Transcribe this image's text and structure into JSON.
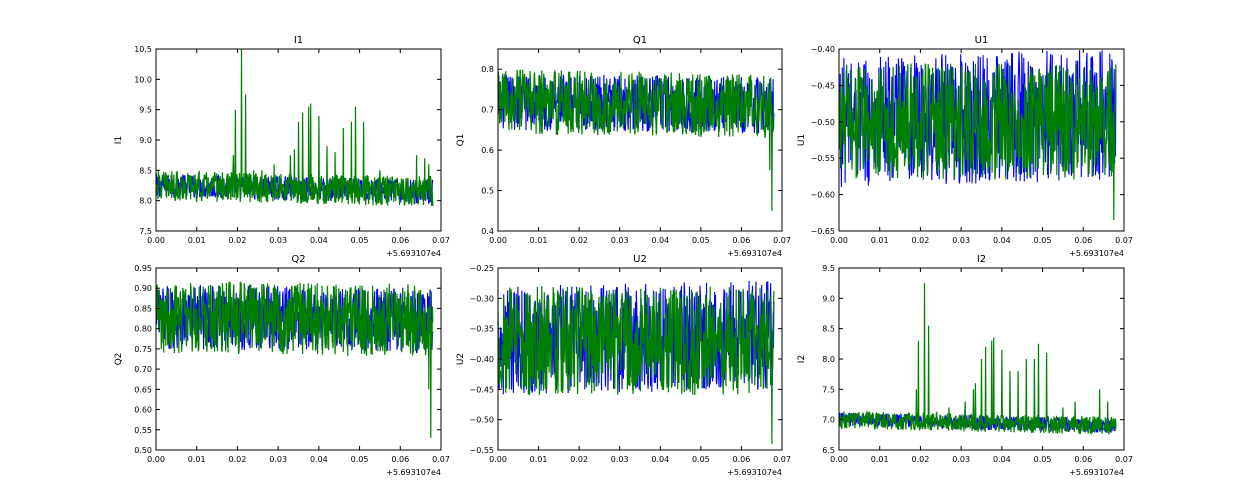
{
  "colors": {
    "series_a": "#0000ff",
    "series_b": "#008000",
    "frame": "#000000",
    "background": "#ffffff"
  },
  "chart_data": [
    {
      "type": "line",
      "title": "I1",
      "ylabel": "I1",
      "xlim": [
        0.0,
        0.07
      ],
      "ylim": [
        7.5,
        10.5
      ],
      "xticks": [
        "0.00",
        "0.01",
        "0.02",
        "0.03",
        "0.04",
        "0.05",
        "0.06",
        "0.07"
      ],
      "yticks": [
        "7.5",
        "8.0",
        "8.5",
        "9.0",
        "9.5",
        "10.0",
        "10.5"
      ],
      "x_offset_label": "+5.693107e4",
      "series": [
        {
          "color": "#0000ff",
          "x_range": [
            0.0,
            0.068
          ],
          "baseline_start": 8.25,
          "baseline_end": 8.15,
          "amplitude": 0.2,
          "spikes": []
        },
        {
          "color": "#008000",
          "x_range": [
            0.0,
            0.068
          ],
          "baseline_start": 8.25,
          "baseline_end": 8.15,
          "amplitude": 0.25,
          "spikes": [
            [
              0.019,
              8.75
            ],
            [
              0.0195,
              9.5
            ],
            [
              0.021,
              10.5
            ],
            [
              0.022,
              9.75
            ],
            [
              0.024,
              8.5
            ],
            [
              0.026,
              8.5
            ],
            [
              0.029,
              8.6
            ],
            [
              0.033,
              8.75
            ],
            [
              0.034,
              8.85
            ],
            [
              0.035,
              9.3
            ],
            [
              0.036,
              9.45
            ],
            [
              0.0375,
              9.55
            ],
            [
              0.038,
              9.6
            ],
            [
              0.04,
              9.4
            ],
            [
              0.042,
              8.9
            ],
            [
              0.044,
              8.8
            ],
            [
              0.046,
              9.2
            ],
            [
              0.048,
              9.3
            ],
            [
              0.049,
              9.55
            ],
            [
              0.051,
              9.3
            ],
            [
              0.055,
              8.5
            ],
            [
              0.058,
              8.4
            ],
            [
              0.064,
              8.75
            ],
            [
              0.066,
              8.7
            ],
            [
              0.067,
              8.6
            ]
          ]
        }
      ]
    },
    {
      "type": "line",
      "title": "Q1",
      "ylabel": "Q1",
      "xlim": [
        0.0,
        0.07
      ],
      "ylim": [
        0.4,
        0.85
      ],
      "xticks": [
        "0.00",
        "0.01",
        "0.02",
        "0.03",
        "0.04",
        "0.05",
        "0.06",
        "0.07"
      ],
      "yticks": [
        "0.4",
        "0.5",
        "0.6",
        "0.7",
        "0.8"
      ],
      "x_offset_label": "+5.693107e4",
      "series": [
        {
          "color": "#0000ff",
          "x_range": [
            0.0,
            0.068
          ],
          "baseline_start": 0.72,
          "baseline_end": 0.71,
          "amplitude": 0.07,
          "spikes": []
        },
        {
          "color": "#008000",
          "x_range": [
            0.0,
            0.068
          ],
          "baseline_start": 0.72,
          "baseline_end": 0.71,
          "amplitude": 0.08,
          "spikes": [
            [
              0.0675,
              0.45
            ],
            [
              0.067,
              0.55
            ]
          ]
        }
      ]
    },
    {
      "type": "line",
      "title": "U1",
      "ylabel": "U1",
      "xlim": [
        0.0,
        0.07
      ],
      "ylim": [
        -0.65,
        -0.4
      ],
      "xticks": [
        "0.00",
        "0.01",
        "0.02",
        "0.03",
        "0.04",
        "0.05",
        "0.06",
        "0.07"
      ],
      "yticks": [
        "−0.65",
        "−0.60",
        "−0.55",
        "−0.50",
        "−0.45",
        "−0.40"
      ],
      "x_offset_label": "+5.693107e4",
      "series": [
        {
          "color": "#0000ff",
          "x_range": [
            0.0,
            0.068
          ],
          "baseline_start": -0.5,
          "baseline_end": -0.49,
          "amplitude": 0.09,
          "spikes": []
        },
        {
          "color": "#008000",
          "x_range": [
            0.0,
            0.068
          ],
          "baseline_start": -0.5,
          "baseline_end": -0.5,
          "amplitude": 0.08,
          "spikes": [
            [
              0.0675,
              -0.635
            ]
          ]
        }
      ]
    },
    {
      "type": "line",
      "title": "Q2",
      "ylabel": "Q2",
      "xlim": [
        0.0,
        0.07
      ],
      "ylim": [
        0.5,
        0.95
      ],
      "xticks": [
        "0.00",
        "0.01",
        "0.02",
        "0.03",
        "0.04",
        "0.05",
        "0.06",
        "0.07"
      ],
      "yticks": [
        "0.50",
        "0.55",
        "0.60",
        "0.65",
        "0.70",
        "0.75",
        "0.80",
        "0.85",
        "0.90",
        "0.95"
      ],
      "x_offset_label": "+5.693107e4",
      "series": [
        {
          "color": "#0000ff",
          "x_range": [
            0.0,
            0.068
          ],
          "baseline_start": 0.83,
          "baseline_end": 0.82,
          "amplitude": 0.08,
          "spikes": []
        },
        {
          "color": "#008000",
          "x_range": [
            0.0,
            0.068
          ],
          "baseline_start": 0.83,
          "baseline_end": 0.82,
          "amplitude": 0.09,
          "spikes": [
            [
              0.0675,
              0.53
            ],
            [
              0.067,
              0.65
            ]
          ]
        }
      ]
    },
    {
      "type": "line",
      "title": "U2",
      "ylabel": "U2",
      "xlim": [
        0.0,
        0.07
      ],
      "ylim": [
        -0.55,
        -0.25
      ],
      "xticks": [
        "0.00",
        "0.01",
        "0.02",
        "0.03",
        "0.04",
        "0.05",
        "0.06",
        "0.07"
      ],
      "yticks": [
        "−0.55",
        "−0.50",
        "−0.45",
        "−0.40",
        "−0.35",
        "−0.30",
        "−0.25"
      ],
      "x_offset_label": "+5.693107e4",
      "series": [
        {
          "color": "#0000ff",
          "x_range": [
            0.0,
            0.068
          ],
          "baseline_start": -0.37,
          "baseline_end": -0.36,
          "amplitude": 0.09,
          "spikes": []
        },
        {
          "color": "#008000",
          "x_range": [
            0.0,
            0.068
          ],
          "baseline_start": -0.37,
          "baseline_end": -0.37,
          "amplitude": 0.09,
          "spikes": [
            [
              0.0675,
              -0.54
            ]
          ]
        }
      ]
    },
    {
      "type": "line",
      "title": "I2",
      "ylabel": "I2",
      "xlim": [
        0.0,
        0.07
      ],
      "ylim": [
        6.5,
        9.5
      ],
      "xticks": [
        "0.00",
        "0.01",
        "0.02",
        "0.03",
        "0.04",
        "0.05",
        "0.06",
        "0.07"
      ],
      "yticks": [
        "6.5",
        "7.0",
        "7.5",
        "8.0",
        "8.5",
        "9.0",
        "9.5"
      ],
      "x_offset_label": "+5.693107e4",
      "series": [
        {
          "color": "#0000ff",
          "x_range": [
            0.0,
            0.068
          ],
          "baseline_start": 7.0,
          "baseline_end": 6.9,
          "amplitude": 0.12,
          "spikes": []
        },
        {
          "color": "#008000",
          "x_range": [
            0.0,
            0.068
          ],
          "baseline_start": 7.0,
          "baseline_end": 6.9,
          "amplitude": 0.15,
          "spikes": [
            [
              0.019,
              7.5
            ],
            [
              0.0195,
              8.3
            ],
            [
              0.021,
              9.25
            ],
            [
              0.022,
              8.55
            ],
            [
              0.027,
              7.2
            ],
            [
              0.031,
              7.3
            ],
            [
              0.033,
              7.5
            ],
            [
              0.0335,
              7.6
            ],
            [
              0.035,
              8.0
            ],
            [
              0.036,
              8.2
            ],
            [
              0.0375,
              8.3
            ],
            [
              0.038,
              8.35
            ],
            [
              0.04,
              8.15
            ],
            [
              0.042,
              7.8
            ],
            [
              0.044,
              7.8
            ],
            [
              0.046,
              8.0
            ],
            [
              0.048,
              8.0
            ],
            [
              0.049,
              8.25
            ],
            [
              0.051,
              8.1
            ],
            [
              0.055,
              7.2
            ],
            [
              0.058,
              7.3
            ],
            [
              0.064,
              7.5
            ],
            [
              0.066,
              7.3
            ]
          ]
        }
      ]
    }
  ]
}
